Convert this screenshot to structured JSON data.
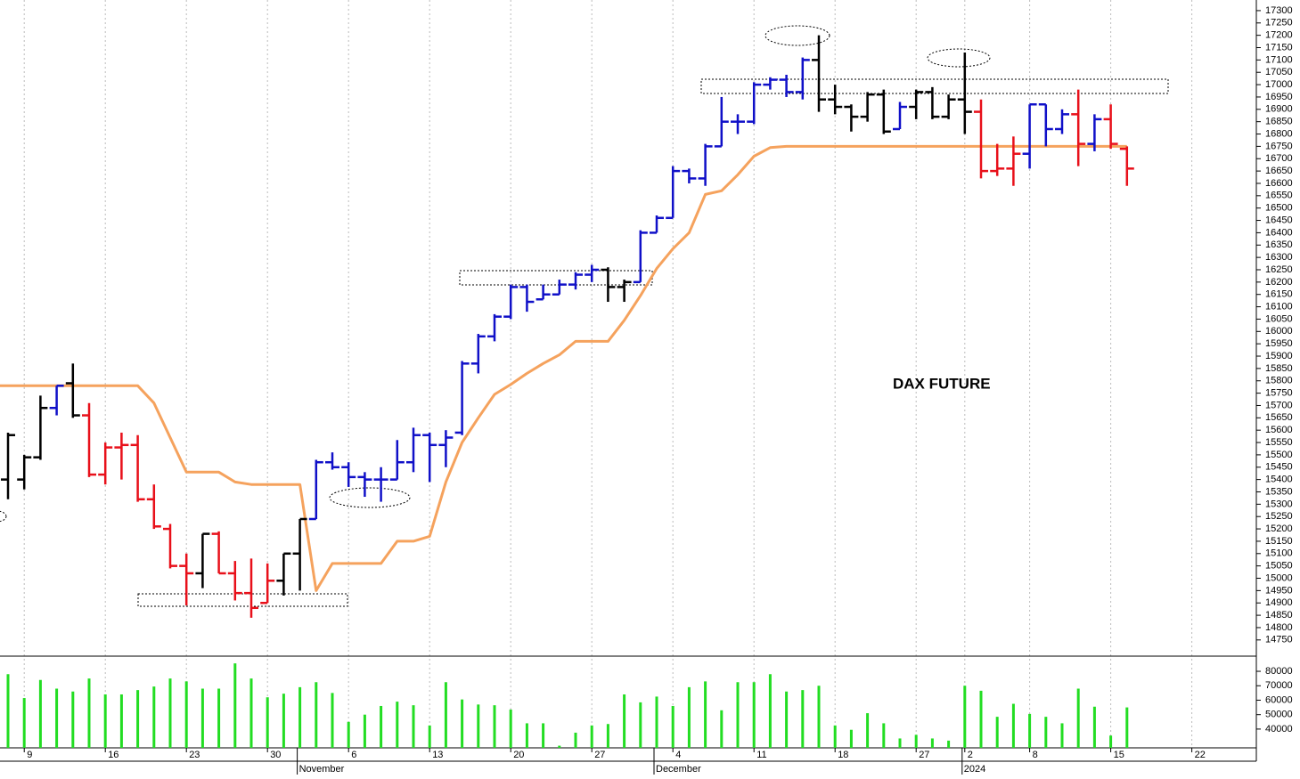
{
  "chart_data": {
    "type": "ohlc",
    "annotation": "DAX FUTURE",
    "categories": [
      null,
      "9",
      null,
      null,
      null,
      null,
      "16",
      null,
      null,
      null,
      null,
      "23",
      null,
      null,
      null,
      null,
      "30",
      null,
      null,
      null,
      null,
      "6",
      null,
      null,
      null,
      null,
      "13",
      null,
      null,
      null,
      null,
      "20",
      null,
      null,
      null,
      null,
      "27",
      null,
      null,
      null,
      null,
      "4",
      null,
      null,
      null,
      null,
      "11",
      null,
      null,
      null,
      null,
      "18",
      null,
      null,
      null,
      null,
      "27",
      null,
      null,
      "2",
      null,
      null,
      null,
      "8",
      null,
      null,
      null,
      null,
      "15",
      null,
      null,
      null,
      null,
      "22"
    ],
    "month_labels": [
      null,
      null,
      null,
      null,
      null,
      null,
      null,
      null,
      null,
      null,
      null,
      null,
      null,
      null,
      null,
      null,
      null,
      null,
      "November",
      null,
      null,
      null,
      null,
      null,
      null,
      null,
      null,
      null,
      null,
      null,
      null,
      null,
      null,
      null,
      null,
      null,
      null,
      null,
      null,
      null,
      "December",
      null,
      null,
      null,
      null,
      null,
      null,
      null,
      null,
      null,
      null,
      null,
      null,
      null,
      null,
      null,
      null,
      null,
      null,
      "2024",
      null,
      null,
      null,
      null,
      null,
      null,
      null,
      null,
      null,
      null,
      null,
      null,
      null,
      null
    ],
    "open": [
      15400,
      15400,
      15490,
      15690,
      15790,
      15660,
      15420,
      15530,
      15540,
      15320,
      15200,
      15050,
      15020,
      15180,
      15020,
      14940,
      14900,
      14990,
      15100,
      15240,
      15470,
      15450,
      15410,
      15400,
      15400,
      15470,
      15580,
      15540,
      15590,
      15870,
      15980,
      16060,
      16180,
      16130,
      16150,
      16190,
      16230,
      16250,
      16180,
      16200,
      16400,
      16460,
      16650,
      16620,
      16750,
      16850,
      16850,
      17000,
      17020,
      16970,
      17100,
      16940,
      16910,
      16870,
      16960,
      16820,
      16910,
      16970,
      16870,
      16940,
      16890,
      16650,
      16660,
      16720,
      16920,
      16820,
      16880,
      16760,
      16860,
      16740,
      null,
      null,
      null,
      null
    ],
    "high": [
      15590,
      15500,
      15740,
      15780,
      15870,
      15710,
      15550,
      15590,
      15580,
      15380,
      15220,
      15100,
      15180,
      15190,
      15070,
      15080,
      15060,
      15100,
      15240,
      15480,
      15510,
      15470,
      15430,
      15450,
      15560,
      15610,
      15590,
      15600,
      15880,
      15990,
      16070,
      16190,
      16190,
      16190,
      16210,
      16240,
      16270,
      16260,
      16210,
      16410,
      16470,
      16670,
      16660,
      16760,
      16950,
      16880,
      17010,
      17030,
      17040,
      17110,
      17200,
      17000,
      16920,
      16970,
      16980,
      16930,
      16980,
      16990,
      16960,
      17130,
      16940,
      16760,
      16790,
      16920,
      16920,
      16900,
      16980,
      16880,
      16920,
      16750,
      null,
      null,
      null,
      null
    ],
    "low": [
      15320,
      15360,
      15480,
      15660,
      15650,
      15410,
      15380,
      15400,
      15310,
      15200,
      15040,
      14890,
      14960,
      15020,
      14910,
      14840,
      14900,
      14930,
      14950,
      15240,
      15440,
      15370,
      15330,
      15310,
      15400,
      15430,
      15390,
      15450,
      15580,
      15830,
      15960,
      16050,
      16080,
      16130,
      16150,
      16170,
      16200,
      16120,
      16120,
      16200,
      16400,
      16460,
      16600,
      16590,
      16750,
      16800,
      16840,
      16980,
      16950,
      16940,
      16890,
      16880,
      16810,
      16850,
      16800,
      16820,
      16860,
      16860,
      16860,
      16800,
      16620,
      16630,
      16590,
      16660,
      16750,
      16800,
      16670,
      16730,
      16740,
      16590,
      null,
      null,
      null,
      null
    ],
    "close": [
      15580,
      15490,
      15690,
      15780,
      15660,
      15420,
      15530,
      15540,
      15320,
      15210,
      15050,
      15020,
      15180,
      15020,
      14940,
      14880,
      14990,
      15100,
      15240,
      15470,
      15450,
      15410,
      15400,
      15400,
      15470,
      15580,
      15540,
      15570,
      15870,
      15980,
      16060,
      16180,
      16120,
      16150,
      16190,
      16230,
      16250,
      16180,
      16200,
      16400,
      16460,
      16650,
      16620,
      16750,
      16850,
      16850,
      17000,
      17020,
      16970,
      17100,
      16940,
      16910,
      16870,
      16960,
      16810,
      16910,
      16970,
      16870,
      16940,
      16890,
      16650,
      16660,
      16720,
      16920,
      16820,
      16880,
      16760,
      16860,
      16760,
      16660,
      null,
      null,
      null,
      null
    ],
    "bar_colors": [
      "#000000",
      "#000000",
      "#000000",
      "#1010c8",
      "#000000",
      "#e8101a",
      "#e8101a",
      "#e8101a",
      "#e8101a",
      "#e8101a",
      "#e8101a",
      "#e8101a",
      "#000000",
      "#e8101a",
      "#e8101a",
      "#e8101a",
      "#e8101a",
      "#000000",
      "#000000",
      "#1010c8",
      "#1010c8",
      "#1010c8",
      "#1010c8",
      "#1010c8",
      "#1010c8",
      "#1010c8",
      "#1010c8",
      "#1010c8",
      "#1010c8",
      "#1010c8",
      "#1010c8",
      "#1010c8",
      "#1010c8",
      "#1010c8",
      "#1010c8",
      "#1010c8",
      "#1010c8",
      "#000000",
      "#000000",
      "#1010c8",
      "#1010c8",
      "#1010c8",
      "#1010c8",
      "#1010c8",
      "#1010c8",
      "#1010c8",
      "#1010c8",
      "#1010c8",
      "#1010c8",
      "#1010c8",
      "#000000",
      "#000000",
      "#000000",
      "#000000",
      "#000000",
      "#1010c8",
      "#000000",
      "#000000",
      "#000000",
      "#000000",
      "#e8101a",
      "#e8101a",
      "#e8101a",
      "#1010c8",
      "#1010c8",
      "#1010c8",
      "#e8101a",
      "#1010c8",
      "#e8101a",
      "#e8101a",
      null,
      null,
      null,
      null
    ],
    "line": {
      "color": "#f5a25d",
      "values": [
        15780,
        15780,
        15780,
        15780,
        15780,
        15780,
        15780,
        15780,
        15780,
        15710,
        15570,
        15430,
        15430,
        15430,
        15390,
        15380,
        15380,
        15380,
        15380,
        14950,
        15060,
        15060,
        15060,
        15060,
        15150,
        15150,
        15170,
        15390,
        15550,
        15650,
        15745,
        15785,
        15830,
        15870,
        15905,
        15960,
        15960,
        15960,
        16045,
        16145,
        16255,
        16335,
        16400,
        16555,
        16570,
        16635,
        16710,
        16745,
        16750,
        16750,
        16750,
        16750,
        16750,
        16750,
        16750,
        16750,
        16750,
        16750,
        16750,
        16750,
        16750,
        16750,
        16750,
        16750,
        16750,
        16750,
        16750,
        16750,
        16750,
        16750,
        null,
        null,
        null,
        null
      ]
    },
    "ylim": [
      14688,
      17343
    ],
    "yticks": [
      14750,
      14800,
      14850,
      14900,
      14950,
      15000,
      15050,
      15100,
      15150,
      15200,
      15250,
      15300,
      15350,
      15400,
      15450,
      15500,
      15550,
      15600,
      15650,
      15700,
      15750,
      15800,
      15850,
      15900,
      15950,
      16000,
      16050,
      16100,
      16150,
      16200,
      16250,
      16300,
      16350,
      16400,
      16450,
      16500,
      16550,
      16600,
      16650,
      16700,
      16750,
      16800,
      16850,
      16900,
      16950,
      17000,
      17050,
      17100,
      17150,
      17200,
      17250,
      17300
    ],
    "volume": {
      "color": "#22dd22",
      "values": [
        78000,
        61500,
        74000,
        68000,
        66000,
        75000,
        64000,
        64000,
        67000,
        69500,
        75000,
        73000,
        68000,
        68000,
        85500,
        75000,
        62000,
        64500,
        69000,
        72500,
        65000,
        45000,
        50000,
        56000,
        59000,
        56500,
        42500,
        72500,
        60500,
        57000,
        56500,
        53500,
        44000,
        44000,
        28500,
        37500,
        42500,
        43500,
        64000,
        58500,
        62500,
        56000,
        69000,
        73000,
        53000,
        72500,
        72500,
        78000,
        66000,
        67000,
        70000,
        42500,
        39500,
        51000,
        44000,
        33500,
        36000,
        33500,
        32000,
        70000,
        66500,
        48500,
        57500,
        50500,
        48500,
        44000,
        68000,
        55500,
        35500,
        55000,
        null,
        null,
        null,
        null
      ],
      "ylim": [
        27000,
        90500
      ],
      "yticks": [
        40000,
        50000,
        60000,
        70000,
        80000
      ]
    }
  }
}
